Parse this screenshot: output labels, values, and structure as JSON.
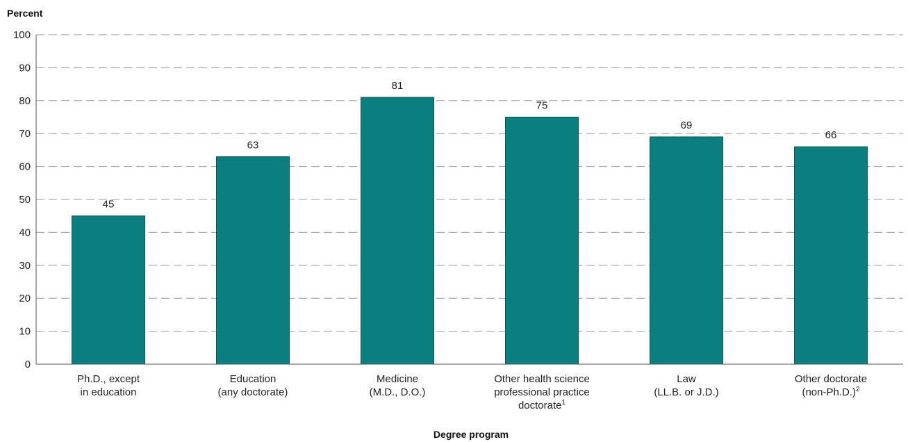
{
  "chart_data": {
    "type": "bar",
    "ylabel": "Percent",
    "xlabel": "Degree program",
    "ylim": [
      0,
      100
    ],
    "yticks": [
      0,
      10,
      20,
      30,
      40,
      50,
      60,
      70,
      80,
      90,
      100
    ],
    "grid": true,
    "bar_color": "#0a7f7f",
    "categories": [
      {
        "lines": [
          "Ph.D., except",
          "in education"
        ],
        "sup": ""
      },
      {
        "lines": [
          "Education",
          "(any doctorate)"
        ],
        "sup": ""
      },
      {
        "lines": [
          "Medicine",
          "(M.D., D.O.)"
        ],
        "sup": ""
      },
      {
        "lines": [
          "Other health science",
          "professional practice",
          "doctorate"
        ],
        "sup": "1"
      },
      {
        "lines": [
          "Law",
          "(LL.B. or J.D.)"
        ],
        "sup": ""
      },
      {
        "lines": [
          "Other doctorate",
          "(non-Ph.D.)"
        ],
        "sup": "2"
      }
    ],
    "values": [
      45,
      63,
      81,
      75,
      69,
      66
    ]
  }
}
